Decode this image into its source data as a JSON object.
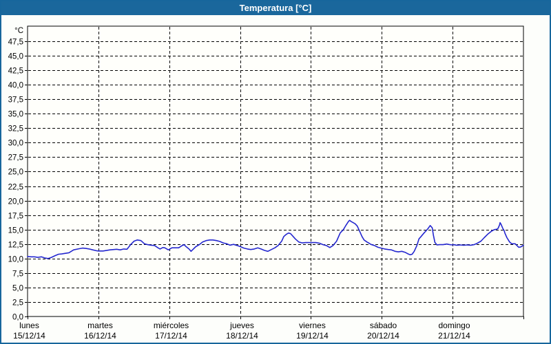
{
  "window": {
    "title": "Temperatura [°C]",
    "titlebar_color": "#1a679c",
    "border_color": "#17669c",
    "title_text_color": "#ffffff"
  },
  "chart_data": {
    "type": "line",
    "title": "Temperatura [°C]",
    "legend": "none",
    "grid": {
      "style": "dashed",
      "color": "#000000"
    },
    "y_axis": {
      "unit_label": "°C",
      "min": 0,
      "tick_max": 47.5,
      "tick_step": 2.5,
      "display_max": 50.1,
      "tick_labels_top_to_bottom": [
        "47,5",
        "45,0",
        "42,5",
        "40,0",
        "37,5",
        "35,0",
        "32,5",
        "30,0",
        "27,5",
        "25,0",
        "22,5",
        "20,0",
        "17,5",
        "15,0",
        "12,5",
        "10,0",
        "7,5",
        "5,0",
        "2,5",
        "0,0"
      ]
    },
    "x_axis": {
      "range_hours": [
        0,
        168
      ],
      "days": [
        {
          "name": "lunes",
          "date": "15/12/14"
        },
        {
          "name": "martes",
          "date": "16/12/14"
        },
        {
          "name": "miércoles",
          "date": "17/12/14"
        },
        {
          "name": "jueves",
          "date": "18/12/14"
        },
        {
          "name": "viernes",
          "date": "19/12/14"
        },
        {
          "name": "sábado",
          "date": "20/12/14"
        },
        {
          "name": "domingo",
          "date": "21/12/14"
        }
      ]
    },
    "series": [
      {
        "name": "Temperatura",
        "color": "#2326cf",
        "x_unit": "hours_since_monday_00:00",
        "points": [
          [
            0,
            10.35
          ],
          [
            1.2,
            10.3
          ],
          [
            2.3,
            10.3
          ],
          [
            3.5,
            10.2
          ],
          [
            4.7,
            10.3
          ],
          [
            5.8,
            10.1
          ],
          [
            7,
            10.0
          ],
          [
            8.1,
            10.2
          ],
          [
            9.3,
            10.5
          ],
          [
            10.5,
            10.75
          ],
          [
            11.6,
            10.8
          ],
          [
            12.8,
            10.9
          ],
          [
            14,
            11.0
          ],
          [
            15.6,
            11.5
          ],
          [
            17.5,
            11.7
          ],
          [
            18.6,
            11.8
          ],
          [
            19.8,
            11.75
          ],
          [
            20.9,
            11.65
          ],
          [
            22.1,
            11.5
          ],
          [
            23.3,
            11.35
          ],
          [
            24,
            11.3
          ],
          [
            25.6,
            11.3
          ],
          [
            27.9,
            11.5
          ],
          [
            30.2,
            11.6
          ],
          [
            31.4,
            11.5
          ],
          [
            32.6,
            11.65
          ],
          [
            33.7,
            11.6
          ],
          [
            34.9,
            12.4
          ],
          [
            36.1,
            13.0
          ],
          [
            37.2,
            13.2
          ],
          [
            38.4,
            13.1
          ],
          [
            39.6,
            12.55
          ],
          [
            40.7,
            12.4
          ],
          [
            41.9,
            12.3
          ],
          [
            43,
            12.25
          ],
          [
            44.2,
            11.85
          ],
          [
            44.9,
            11.65
          ],
          [
            45.8,
            11.9
          ],
          [
            46.5,
            11.85
          ],
          [
            47.7,
            11.5
          ],
          [
            48.2,
            11.65
          ],
          [
            48.9,
            11.85
          ],
          [
            50,
            11.85
          ],
          [
            51.2,
            11.85
          ],
          [
            52.4,
            12.25
          ],
          [
            53.1,
            12.4
          ],
          [
            53.5,
            12.15
          ],
          [
            54.7,
            11.65
          ],
          [
            55.4,
            11.25
          ],
          [
            55.8,
            11.45
          ],
          [
            57,
            12.05
          ],
          [
            58.2,
            12.4
          ],
          [
            59.3,
            12.85
          ],
          [
            60.5,
            13.1
          ],
          [
            61.7,
            13.2
          ],
          [
            62.8,
            13.2
          ],
          [
            64,
            13.1
          ],
          [
            65.1,
            12.95
          ],
          [
            66.3,
            12.7
          ],
          [
            67.5,
            12.55
          ],
          [
            68.6,
            12.3
          ],
          [
            69.8,
            12.45
          ],
          [
            71,
            12.25
          ],
          [
            72.1,
            12.05
          ],
          [
            73.3,
            11.8
          ],
          [
            74.5,
            11.65
          ],
          [
            75.6,
            11.55
          ],
          [
            76.8,
            11.65
          ],
          [
            78,
            11.85
          ],
          [
            79.1,
            11.65
          ],
          [
            80.3,
            11.4
          ],
          [
            81.4,
            11.25
          ],
          [
            82.6,
            11.55
          ],
          [
            83.8,
            11.85
          ],
          [
            84.9,
            12.25
          ],
          [
            86.1,
            13.0
          ],
          [
            86.8,
            13.8
          ],
          [
            87.7,
            14.2
          ],
          [
            88.4,
            14.4
          ],
          [
            89.1,
            14.3
          ],
          [
            90,
            13.8
          ],
          [
            90.7,
            13.4
          ],
          [
            91.9,
            12.85
          ],
          [
            93.1,
            12.7
          ],
          [
            94.2,
            12.75
          ],
          [
            95.4,
            12.75
          ],
          [
            96.6,
            12.75
          ],
          [
            97.7,
            12.75
          ],
          [
            98.9,
            12.65
          ],
          [
            100.1,
            12.4
          ],
          [
            101.2,
            12.25
          ],
          [
            102.4,
            11.9
          ],
          [
            103.5,
            12.25
          ],
          [
            104.7,
            13.0
          ],
          [
            105.9,
            14.4
          ],
          [
            107,
            15.0
          ],
          [
            107.7,
            15.6
          ],
          [
            108.7,
            16.4
          ],
          [
            109.1,
            16.6
          ],
          [
            109.6,
            16.4
          ],
          [
            110.3,
            16.2
          ],
          [
            111,
            16.0
          ],
          [
            111.7,
            15.6
          ],
          [
            112.6,
            14.6
          ],
          [
            113.3,
            13.8
          ],
          [
            114,
            13.2
          ],
          [
            115,
            12.85
          ],
          [
            115.7,
            12.65
          ],
          [
            116.3,
            12.45
          ],
          [
            117.5,
            12.25
          ],
          [
            118.7,
            11.95
          ],
          [
            119.8,
            11.8
          ],
          [
            121,
            11.65
          ],
          [
            122.2,
            11.55
          ],
          [
            123.3,
            11.5
          ],
          [
            124.5,
            11.25
          ],
          [
            125.6,
            11.15
          ],
          [
            126.8,
            11.25
          ],
          [
            128,
            11.05
          ],
          [
            128.7,
            10.85
          ],
          [
            129.6,
            10.65
          ],
          [
            130.3,
            10.75
          ],
          [
            131,
            11.25
          ],
          [
            131.9,
            12.25
          ],
          [
            132.6,
            13.4
          ],
          [
            133.3,
            13.8
          ],
          [
            134.3,
            14.4
          ],
          [
            135,
            14.8
          ],
          [
            135.7,
            15.2
          ],
          [
            136.4,
            15.7
          ],
          [
            137.1,
            15.3
          ],
          [
            137.5,
            14.0
          ],
          [
            138,
            12.8
          ],
          [
            138.7,
            12.35
          ],
          [
            139.6,
            12.4
          ],
          [
            140.8,
            12.4
          ],
          [
            142,
            12.5
          ],
          [
            143.1,
            12.4
          ],
          [
            143.8,
            12.35
          ],
          [
            144.3,
            12.4
          ],
          [
            145.4,
            12.3
          ],
          [
            146.6,
            12.35
          ],
          [
            147.8,
            12.3
          ],
          [
            148.9,
            12.35
          ],
          [
            150.1,
            12.3
          ],
          [
            151.3,
            12.4
          ],
          [
            152.4,
            12.65
          ],
          [
            153.6,
            13.0
          ],
          [
            154.7,
            13.6
          ],
          [
            155.9,
            14.2
          ],
          [
            157.1,
            14.7
          ],
          [
            157.8,
            14.9
          ],
          [
            158.2,
            15.0
          ],
          [
            158.9,
            15.05
          ],
          [
            159.4,
            15.2
          ],
          [
            159.9,
            15.8
          ],
          [
            160.1,
            16.2
          ],
          [
            160.5,
            15.8
          ],
          [
            161,
            15.2
          ],
          [
            161.5,
            14.8
          ],
          [
            161.7,
            14.4
          ],
          [
            162.4,
            13.6
          ],
          [
            162.9,
            13.2
          ],
          [
            163.3,
            12.85
          ],
          [
            164,
            12.55
          ],
          [
            165.2,
            12.55
          ],
          [
            165.7,
            12.3
          ],
          [
            166.4,
            11.95
          ],
          [
            167.1,
            12.0
          ],
          [
            168,
            12.3
          ]
        ]
      }
    ]
  }
}
